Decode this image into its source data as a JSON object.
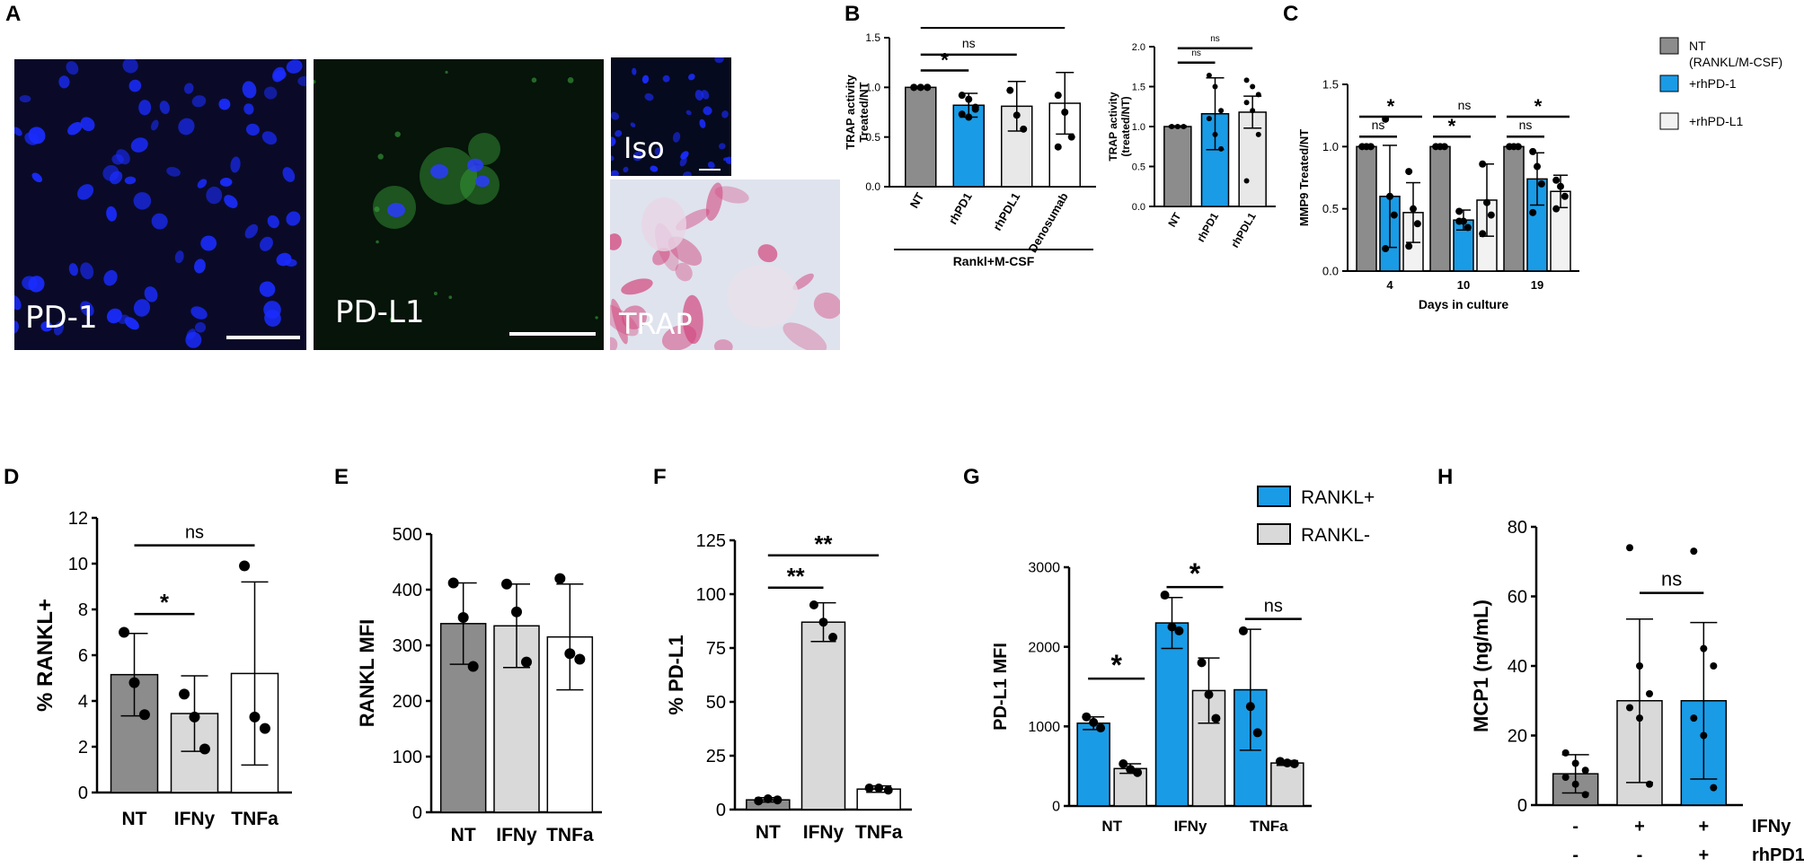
{
  "panels": {
    "A": "A",
    "B": "B",
    "C": "C",
    "D": "D",
    "E": "E",
    "F": "F",
    "G": "G",
    "H": "H"
  },
  "images": {
    "pd1": {
      "label": "PD-1",
      "background": "#0a0a28",
      "stain": "#1a2cff"
    },
    "pdl1": {
      "label": "PD-L1",
      "background": "#06140a",
      "stain": "#3aa23a"
    },
    "iso": {
      "label": "Iso",
      "background": "#060a1e",
      "stain": "#1a2cff"
    },
    "trap": {
      "label": "TRAP",
      "background": "#dfe3ee",
      "stain": "#d2437a"
    }
  },
  "colors": {
    "dark_gray": "#8c8c8c",
    "light_gray": "#d9d9d9",
    "blue": "#1a9be6",
    "white": "#ffffff",
    "black": "#000000"
  },
  "chart_data": [
    {
      "id": "B1",
      "type": "bar",
      "ylabel": "TRAP activity\nTreated/NT",
      "ylim": [
        0,
        1.5
      ],
      "yticks": [
        0.0,
        0.5,
        1.0,
        1.5
      ],
      "ytick_labels": [
        "0.0",
        "0.5",
        "1.0",
        "1.5"
      ],
      "categories": [
        "NT",
        "rhPD1",
        "rhPDL1",
        "Denosumab"
      ],
      "values": [
        1.0,
        0.82,
        0.81,
        0.84
      ],
      "errors": [
        0.01,
        0.12,
        0.25,
        0.31
      ],
      "bar_colors": [
        "#8c8c8c",
        "#1a9be6",
        "#e8e8e8",
        "#ffffff"
      ],
      "points": [
        [
          1.0,
          1.0,
          1.0,
          1.0,
          1.0,
          1.0
        ],
        [
          0.92,
          0.88,
          0.8,
          0.73,
          0.7,
          0.78
        ],
        [
          0.97,
          0.72,
          0.58
        ],
        [
          0.92,
          0.75,
          0.5,
          0.4
        ]
      ],
      "xgroup_label": "Rankl+M-CSF",
      "significance": [
        {
          "from": 0,
          "to": 1,
          "label": "*"
        },
        {
          "from": 0,
          "to": 2,
          "label": "ns"
        },
        {
          "from": 0,
          "to": 3,
          "label": "ns"
        }
      ]
    },
    {
      "id": "B2",
      "type": "bar",
      "ylabel": "TRAP activity\n(treated/NT)",
      "ylim": [
        0,
        2.0
      ],
      "yticks": [
        0.0,
        0.5,
        1.0,
        1.5,
        2.0
      ],
      "ytick_labels": [
        "0.0",
        "0.5",
        "1.0",
        "1.5",
        "2.0"
      ],
      "categories": [
        "NT",
        "rhPD1",
        "rhPDL1"
      ],
      "values": [
        1.0,
        1.16,
        1.18
      ],
      "errors": [
        0.01,
        0.45,
        0.2
      ],
      "bar_colors": [
        "#8c8c8c",
        "#1a9be6",
        "#e8e8e8"
      ],
      "points": [
        [
          1.0,
          1.0,
          1.0
        ],
        [
          1.64,
          1.5,
          1.2,
          1.1,
          0.9,
          0.72
        ],
        [
          1.58,
          1.5,
          1.4,
          1.3,
          1.2,
          0.9,
          0.32
        ]
      ],
      "significance": [
        {
          "from": 0,
          "to": 1,
          "label": "ns"
        },
        {
          "from": 0,
          "to": 2,
          "label": "ns"
        }
      ]
    },
    {
      "id": "C",
      "type": "bar",
      "ylabel": "MMP9 Treated/NT",
      "xlabel": "Days in culture",
      "ylim": [
        0,
        1.5
      ],
      "yticks": [
        0.0,
        0.5,
        1.0,
        1.5
      ],
      "ytick_labels": [
        "0.0",
        "0.5",
        "1.0",
        "1.5"
      ],
      "categories": [
        "4",
        "10",
        "19"
      ],
      "series": [
        {
          "name": "NT\n(RANKL/M-CSF)",
          "color": "#8c8c8c",
          "values": [
            1.0,
            1.0,
            1.0
          ],
          "errors": [
            0.01,
            0.01,
            0.01
          ],
          "points": [
            [
              1.0,
              1.0,
              1.0
            ],
            [
              1.0,
              1.0,
              1.0
            ],
            [
              1.0,
              1.0,
              1.0
            ]
          ]
        },
        {
          "name": "+rhPD-1",
          "color": "#1a9be6",
          "values": [
            0.6,
            0.41,
            0.74
          ],
          "errors": [
            0.41,
            0.08,
            0.21
          ],
          "points": [
            [
              1.22,
              0.6,
              0.45,
              0.18
            ],
            [
              0.48,
              0.4,
              0.35,
              0.4
            ],
            [
              0.96,
              0.84,
              0.7,
              0.47
            ]
          ]
        },
        {
          "name": "+rhPD-L1",
          "color": "#f2f2f2",
          "values": [
            0.47,
            0.57,
            0.64
          ],
          "errors": [
            0.24,
            0.29,
            0.13
          ],
          "points": [
            [
              0.8,
              0.5,
              0.38,
              0.2
            ],
            [
              0.86,
              0.55,
              0.45,
              0.3
            ],
            [
              0.73,
              0.68,
              0.6,
              0.5
            ]
          ]
        }
      ],
      "significance": [
        {
          "group": 0,
          "label": "ns",
          "pair": "NT-PD1"
        },
        {
          "group": 0,
          "label": "*",
          "pair": "NT-PDL1"
        },
        {
          "group": 1,
          "label": "*",
          "pair": "NT-PD1"
        },
        {
          "group": 1,
          "label": "ns",
          "pair": "NT-PDL1"
        },
        {
          "group": 2,
          "label": "ns",
          "pair": "NT-PD1"
        },
        {
          "group": 2,
          "label": "*",
          "pair": "NT-PDL1"
        }
      ],
      "legend_position": "top-right"
    },
    {
      "id": "D",
      "type": "bar",
      "ylabel": "% RANKL+",
      "ylim": [
        0,
        12
      ],
      "yticks": [
        0,
        2,
        4,
        6,
        8,
        10,
        12
      ],
      "ytick_labels": [
        "0",
        "2",
        "4",
        "6",
        "8",
        "10",
        "12"
      ],
      "categories": [
        "NT",
        "IFNy",
        "TNFa"
      ],
      "values": [
        5.15,
        3.45,
        5.2
      ],
      "errors": [
        1.8,
        1.65,
        4.0
      ],
      "bar_colors": [
        "#8c8c8c",
        "#d9d9d9",
        "#ffffff"
      ],
      "points": [
        [
          7.0,
          4.8,
          3.4
        ],
        [
          4.3,
          3.3,
          1.9
        ],
        [
          9.9,
          3.3,
          2.8
        ]
      ],
      "significance": [
        {
          "from": 0,
          "to": 1,
          "label": "*"
        },
        {
          "from": 0,
          "to": 2,
          "label": "ns"
        }
      ]
    },
    {
      "id": "E",
      "type": "bar",
      "ylabel": "RANKL MFI",
      "ylim": [
        0,
        500
      ],
      "yticks": [
        0,
        100,
        200,
        300,
        400,
        500
      ],
      "ytick_labels": [
        "0",
        "100",
        "200",
        "300",
        "400",
        "500"
      ],
      "categories": [
        "NT",
        "IFNy",
        "TNFa"
      ],
      "values": [
        339,
        335,
        315
      ],
      "errors": [
        73,
        75,
        95
      ],
      "bar_colors": [
        "#8c8c8c",
        "#d9d9d9",
        "#ffffff"
      ],
      "points": [
        [
          412,
          350,
          262
        ],
        [
          410,
          360,
          270
        ],
        [
          420,
          285,
          275
        ]
      ],
      "significance": []
    },
    {
      "id": "F",
      "type": "bar",
      "ylabel": "% PD-L1",
      "ylim": [
        0,
        125
      ],
      "yticks": [
        0,
        25,
        50,
        75,
        100,
        125
      ],
      "ytick_labels": [
        "0",
        "25",
        "50",
        "75",
        "100",
        "125"
      ],
      "categories": [
        "NT",
        "IFNy",
        "TNFa"
      ],
      "values": [
        4.5,
        87,
        9.5
      ],
      "errors": [
        1,
        9,
        1.5
      ],
      "bar_colors": [
        "#8c8c8c",
        "#d9d9d9",
        "#ffffff"
      ],
      "points": [
        [
          4,
          5,
          4.5
        ],
        [
          95,
          87,
          80
        ],
        [
          10,
          10,
          9
        ]
      ],
      "significance": [
        {
          "from": 0,
          "to": 1,
          "label": "**"
        },
        {
          "from": 0,
          "to": 2,
          "label": "**"
        }
      ]
    },
    {
      "id": "G",
      "type": "bar",
      "ylabel": "PD-L1 MFI",
      "ylim": [
        0,
        3000
      ],
      "yticks": [
        0,
        1000,
        2000,
        3000
      ],
      "ytick_labels": [
        "0",
        "1000",
        "2000",
        "3000"
      ],
      "categories": [
        "NT",
        "IFNy",
        "TNFa"
      ],
      "series": [
        {
          "name": "RANKL+",
          "color": "#1a9be6",
          "values": [
            1040,
            2300,
            1460
          ],
          "errors": [
            80,
            320,
            760
          ],
          "points": [
            [
              1120,
              1050,
              980
            ],
            [
              2650,
              2250,
              2200
            ],
            [
              2200,
              1250,
              920
            ]
          ]
        },
        {
          "name": "RANKL-",
          "color": "#d9d9d9",
          "values": [
            470,
            1450,
            540
          ],
          "errors": [
            60,
            410,
            30
          ],
          "points": [
            [
              530,
              460,
              420
            ],
            [
              1800,
              1400,
              1100
            ],
            [
              560,
              540,
              530
            ]
          ]
        }
      ],
      "significance": [
        {
          "group": 0,
          "label": "*"
        },
        {
          "group": 1,
          "label": "*"
        },
        {
          "group": 2,
          "label": "ns"
        }
      ],
      "legend_position": "top-right"
    },
    {
      "id": "H",
      "type": "bar",
      "ylabel": "MCP1 (ng/mL)",
      "ylim": [
        0,
        80
      ],
      "yticks": [
        0,
        20,
        40,
        60,
        80
      ],
      "ytick_labels": [
        "0",
        "20",
        "40",
        "60",
        "80"
      ],
      "categories": [
        "",
        "",
        ""
      ],
      "values": [
        9,
        30,
        30
      ],
      "errors": [
        5.5,
        23.5,
        22.5
      ],
      "bar_colors": [
        "#8c8c8c",
        "#d9d9d9",
        "#1a9be6"
      ],
      "points": [
        [
          15,
          12,
          10,
          8,
          6,
          3
        ],
        [
          74,
          40,
          32,
          28,
          25,
          6
        ],
        [
          73,
          45,
          40,
          25,
          20,
          5
        ]
      ],
      "condition_rows": [
        {
          "name": "IFNy",
          "marks": [
            "-",
            "+",
            "+"
          ]
        },
        {
          "name": "rhPD1",
          "marks": [
            "-",
            "-",
            "+"
          ]
        }
      ],
      "significance": [
        {
          "from": 1,
          "to": 2,
          "label": "ns"
        }
      ]
    }
  ]
}
